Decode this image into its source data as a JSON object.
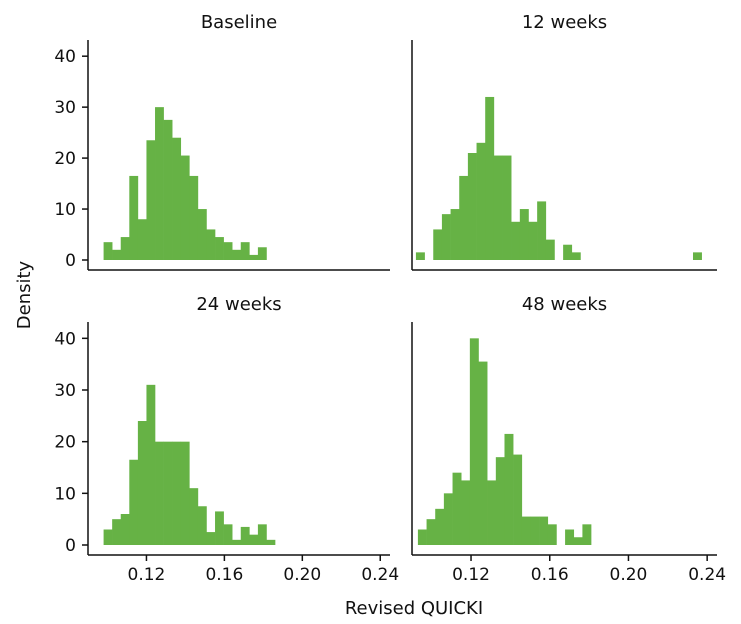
{
  "chart_data": {
    "type": "bar",
    "subtype": "histogram-facets",
    "xlabel": "Revised QUICKI",
    "ylabel": "Density",
    "xlim": [
      0.09,
      0.245
    ],
    "ylim": [
      0,
      42
    ],
    "xticks": [
      0.12,
      0.16,
      0.2,
      0.24
    ],
    "xtick_labels": [
      "0.12",
      "0.16",
      "0.20",
      "0.24"
    ],
    "yticks": [
      0,
      10,
      20,
      30,
      40
    ],
    "ytick_labels": [
      "0",
      "10",
      "20",
      "30",
      "40"
    ],
    "bar_color": "#66b245",
    "bin_width": 0.0044,
    "grid": false,
    "panels": [
      {
        "title": "Baseline",
        "bins": [
          {
            "x": 0.098,
            "density": 3.5
          },
          {
            "x": 0.1024,
            "density": 2.0
          },
          {
            "x": 0.1068,
            "density": 4.5
          },
          {
            "x": 0.1112,
            "density": 16.5
          },
          {
            "x": 0.1156,
            "density": 8.0
          },
          {
            "x": 0.12,
            "density": 23.5
          },
          {
            "x": 0.1244,
            "density": 30.0
          },
          {
            "x": 0.1288,
            "density": 27.5
          },
          {
            "x": 0.1332,
            "density": 24.0
          },
          {
            "x": 0.1376,
            "density": 20.5
          },
          {
            "x": 0.142,
            "density": 16.5
          },
          {
            "x": 0.1464,
            "density": 10.0
          },
          {
            "x": 0.1508,
            "density": 6.0
          },
          {
            "x": 0.1552,
            "density": 4.5
          },
          {
            "x": 0.1596,
            "density": 3.5
          },
          {
            "x": 0.164,
            "density": 2.0
          },
          {
            "x": 0.1684,
            "density": 3.5
          },
          {
            "x": 0.1728,
            "density": 1.0
          },
          {
            "x": 0.1772,
            "density": 2.5
          }
        ]
      },
      {
        "title": "12 weeks",
        "bins": [
          {
            "x": 0.092,
            "density": 1.5
          },
          {
            "x": 0.1008,
            "density": 6.0
          },
          {
            "x": 0.1052,
            "density": 9.0
          },
          {
            "x": 0.1096,
            "density": 10.0
          },
          {
            "x": 0.114,
            "density": 16.5
          },
          {
            "x": 0.1184,
            "density": 21.0
          },
          {
            "x": 0.1228,
            "density": 23.0
          },
          {
            "x": 0.1272,
            "density": 32.0
          },
          {
            "x": 0.1316,
            "density": 20.5
          },
          {
            "x": 0.136,
            "density": 20.5
          },
          {
            "x": 0.1404,
            "density": 7.5
          },
          {
            "x": 0.1448,
            "density": 10.0
          },
          {
            "x": 0.1492,
            "density": 7.5
          },
          {
            "x": 0.1536,
            "density": 11.5
          },
          {
            "x": 0.158,
            "density": 4.0
          },
          {
            "x": 0.1668,
            "density": 3.0
          },
          {
            "x": 0.1712,
            "density": 1.5
          },
          {
            "x": 0.2328,
            "density": 1.5
          }
        ]
      },
      {
        "title": "24 weeks",
        "bins": [
          {
            "x": 0.098,
            "density": 3.0
          },
          {
            "x": 0.1024,
            "density": 5.0
          },
          {
            "x": 0.1068,
            "density": 6.0
          },
          {
            "x": 0.1112,
            "density": 16.5
          },
          {
            "x": 0.1156,
            "density": 24.0
          },
          {
            "x": 0.12,
            "density": 31.0
          },
          {
            "x": 0.1244,
            "density": 20.0
          },
          {
            "x": 0.1288,
            "density": 20.0
          },
          {
            "x": 0.1332,
            "density": 20.0
          },
          {
            "x": 0.1376,
            "density": 20.0
          },
          {
            "x": 0.142,
            "density": 11.0
          },
          {
            "x": 0.1464,
            "density": 7.5
          },
          {
            "x": 0.1508,
            "density": 2.5
          },
          {
            "x": 0.1552,
            "density": 6.5
          },
          {
            "x": 0.1596,
            "density": 4.0
          },
          {
            "x": 0.164,
            "density": 1.0
          },
          {
            "x": 0.1684,
            "density": 3.5
          },
          {
            "x": 0.1728,
            "density": 2.0
          },
          {
            "x": 0.1772,
            "density": 4.0
          },
          {
            "x": 0.1816,
            "density": 1.0
          }
        ]
      },
      {
        "title": "48 weeks",
        "bins": [
          {
            "x": 0.093,
            "density": 3.0
          },
          {
            "x": 0.0974,
            "density": 5.0
          },
          {
            "x": 0.1018,
            "density": 7.0
          },
          {
            "x": 0.1062,
            "density": 10.0
          },
          {
            "x": 0.1106,
            "density": 14.0
          },
          {
            "x": 0.115,
            "density": 12.5
          },
          {
            "x": 0.1194,
            "density": 40.0
          },
          {
            "x": 0.1238,
            "density": 35.5
          },
          {
            "x": 0.1282,
            "density": 12.5
          },
          {
            "x": 0.1326,
            "density": 17.0
          },
          {
            "x": 0.137,
            "density": 21.5
          },
          {
            "x": 0.1414,
            "density": 17.5
          },
          {
            "x": 0.1458,
            "density": 5.5
          },
          {
            "x": 0.1502,
            "density": 5.5
          },
          {
            "x": 0.1546,
            "density": 5.5
          },
          {
            "x": 0.159,
            "density": 4.0
          },
          {
            "x": 0.1678,
            "density": 3.0
          },
          {
            "x": 0.1722,
            "density": 1.5
          },
          {
            "x": 0.1766,
            "density": 4.0
          }
        ]
      }
    ]
  }
}
